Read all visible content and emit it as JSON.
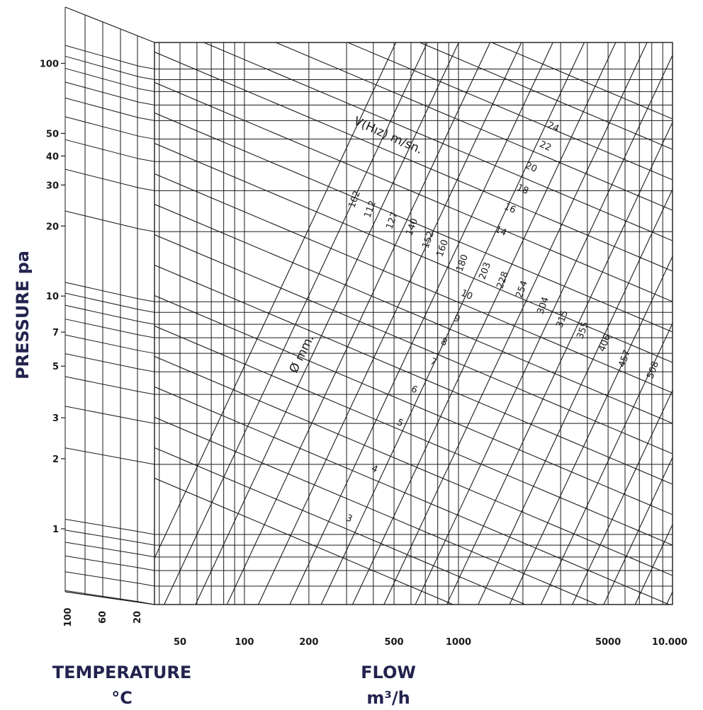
{
  "chart_data": {
    "type": "line",
    "title": "",
    "chart_kind": "duct friction-loss nomogram",
    "grid": true,
    "y_scale": "log",
    "x_scale": "log",
    "ylabel": "PRESSURE pa",
    "xlabel_line1": "FLOW",
    "xlabel_line2": "m³/h",
    "temperature_label_line1": "TEMPERATURE",
    "temperature_label_line2": "°C",
    "ylim": [
      0.5,
      130
    ],
    "xlim": [
      38,
      10000
    ],
    "y_ticks": [
      {
        "value": 100,
        "label": "100"
      },
      {
        "value": 50,
        "label": "50"
      },
      {
        "value": 40,
        "label": "40"
      },
      {
        "value": 30,
        "label": "30"
      },
      {
        "value": 20,
        "label": "20"
      },
      {
        "value": 10,
        "label": "10"
      },
      {
        "value": 7,
        "label": "7"
      },
      {
        "value": 5,
        "label": "5"
      },
      {
        "value": 3,
        "label": "3"
      },
      {
        "value": 2,
        "label": "2"
      },
      {
        "value": 1,
        "label": "1"
      }
    ],
    "x_ticks": [
      {
        "value": 50,
        "label": "50"
      },
      {
        "value": 100,
        "label": "100"
      },
      {
        "value": 200,
        "label": "200"
      },
      {
        "value": 500,
        "label": "500"
      },
      {
        "value": 1000,
        "label": "1000"
      },
      {
        "value": 5000,
        "label": "5000"
      },
      {
        "value": 10000,
        "label": "10.000"
      }
    ],
    "temperature_ticks": [
      {
        "value": 100,
        "label": "100"
      },
      {
        "value": 60,
        "label": "60"
      },
      {
        "value": 20,
        "label": "20"
      }
    ],
    "velocity_series_label": "V(Hız) m/sn.",
    "velocity_labels": [
      "3",
      "4",
      "5",
      "6",
      "7",
      "8",
      "9",
      "10",
      "14",
      "16",
      "18",
      "20",
      "22",
      "24"
    ],
    "diameter_series_label": "Ø mm.",
    "diameter_labels": [
      "102",
      "112",
      "127",
      "140",
      "152",
      "160",
      "180",
      "203",
      "228",
      "254",
      "304",
      "315",
      "355",
      "406",
      "457",
      "508"
    ],
    "colors": {
      "ink": "#1a1a1a",
      "title": "#23234f"
    }
  }
}
